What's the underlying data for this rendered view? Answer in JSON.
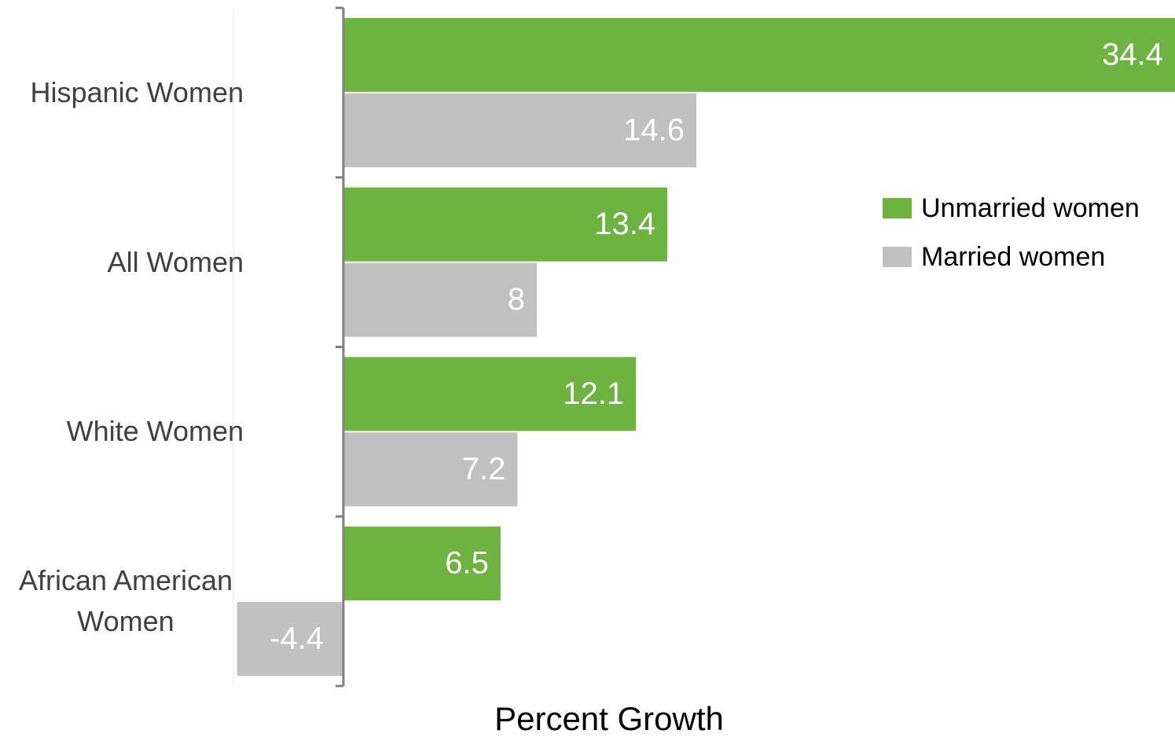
{
  "chart_data": {
    "type": "hbar",
    "categories": [
      "Hispanic Women",
      "All Women",
      "White Women",
      "African American Women"
    ],
    "series": [
      {
        "name": "Unmarried women",
        "color": "#6db33f",
        "values": [
          34.4,
          13.4,
          12.1,
          6.5
        ]
      },
      {
        "name": "Married women",
        "color": "#c0c0c0",
        "values": [
          14.6,
          8,
          7.2,
          -4.4
        ]
      }
    ],
    "xlabel": "Percent Growth",
    "xlim": [
      -4.55,
      34.4
    ],
    "legend": "right"
  }
}
